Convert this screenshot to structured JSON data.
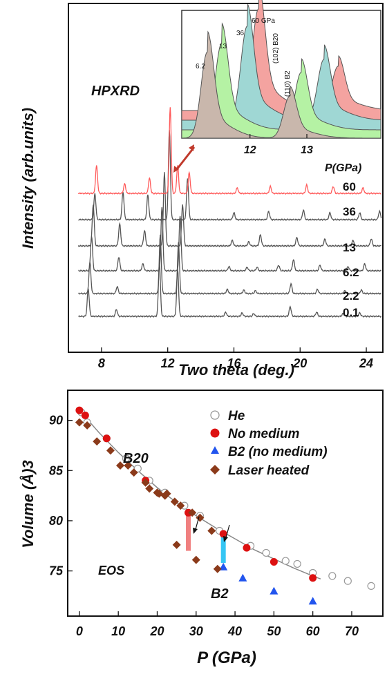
{
  "chart_data": [
    {
      "type": "line",
      "panel": "top",
      "ylabel": "Intensity (arb.units)",
      "xlabel": "Two theta (deg.)",
      "xlim": [
        6,
        25
      ],
      "x_ticks": [
        "8",
        "12",
        "16",
        "20",
        "24"
      ],
      "annotation": "HPXRD",
      "pressure_header": "P(GPa)",
      "series": [
        {
          "name": "0.1",
          "color": "#555555",
          "peaks": [
            [
              7.2,
              40
            ],
            [
              8.9,
              10
            ],
            [
              11.5,
              78
            ],
            [
              12.6,
              68
            ],
            [
              15.5,
              6
            ],
            [
              16.5,
              5
            ],
            [
              17.2,
              4
            ],
            [
              19.4,
              14
            ],
            [
              21.0,
              6
            ],
            [
              22.6,
              4
            ],
            [
              23.6,
              5
            ]
          ]
        },
        {
          "name": "2.2",
          "color": "#555555",
          "peaks": [
            [
              7.3,
              45
            ],
            [
              8.95,
              10
            ],
            [
              11.55,
              85
            ],
            [
              12.65,
              75
            ],
            [
              15.6,
              6
            ],
            [
              16.6,
              5
            ],
            [
              17.3,
              4
            ],
            [
              19.45,
              14
            ],
            [
              21.05,
              6
            ],
            [
              22.7,
              4
            ],
            [
              23.7,
              5
            ]
          ]
        },
        {
          "name": "6.2",
          "color": "#555555",
          "peaks": [
            [
              7.4,
              50
            ],
            [
              9.05,
              20
            ],
            [
              10.5,
              10
            ],
            [
              11.65,
              92
            ],
            [
              12.75,
              80
            ],
            [
              15.7,
              6
            ],
            [
              16.8,
              5
            ],
            [
              17.4,
              5
            ],
            [
              18.7,
              8
            ],
            [
              19.6,
              16
            ],
            [
              21.2,
              8
            ],
            [
              22.9,
              6
            ],
            [
              23.9,
              10
            ]
          ]
        },
        {
          "name": "13",
          "color": "#555555",
          "peaks": [
            [
              7.5,
              60
            ],
            [
              9.1,
              32
            ],
            [
              10.6,
              22
            ],
            [
              11.8,
              106
            ],
            [
              12.9,
              60
            ],
            [
              15.9,
              8
            ],
            [
              16.9,
              6
            ],
            [
              17.6,
              16
            ],
            [
              19.8,
              12
            ],
            [
              21.5,
              10
            ],
            [
              23.2,
              8
            ],
            [
              24.3,
              10
            ]
          ]
        },
        {
          "name": "36",
          "color": "#555555",
          "peaks": [
            [
              7.6,
              38
            ],
            [
              9.3,
              40
            ],
            [
              10.8,
              36
            ],
            [
              12.1,
              130
            ],
            [
              13.2,
              60
            ],
            [
              16.0,
              10
            ],
            [
              18.1,
              12
            ],
            [
              20.2,
              14
            ],
            [
              21.8,
              10
            ],
            [
              23.6,
              10
            ],
            [
              24.8,
              12
            ]
          ]
        },
        {
          "name": "60",
          "color": "#ff5a5a",
          "peaks": [
            [
              7.7,
              40
            ],
            [
              9.4,
              14
            ],
            [
              10.9,
              22
            ],
            [
              12.15,
              125
            ],
            [
              12.6,
              40
            ],
            [
              13.3,
              30
            ],
            [
              16.2,
              8
            ],
            [
              18.2,
              10
            ],
            [
              20.4,
              12
            ],
            [
              22.0,
              10
            ],
            [
              23.8,
              8
            ]
          ]
        }
      ]
    },
    {
      "type": "area",
      "panel": "inset",
      "x_ticks": [
        "12",
        "13"
      ],
      "pressure_labels": [
        "6.2",
        "13",
        "36",
        "60 GPa"
      ],
      "peak_labels": [
        "(102) B20",
        "(110) B2"
      ],
      "series": [
        {
          "name": "6.2",
          "color": "#c9b7ac",
          "peaks": [
            [
              11.25,
              0.78
            ],
            [
              12.7,
              0.38
            ]
          ]
        },
        {
          "name": "13",
          "color": "#b5f2a4",
          "peaks": [
            [
              11.5,
              0.78
            ],
            [
              12.9,
              0.52
            ]
          ]
        },
        {
          "name": "36",
          "color": "#9fd7d4",
          "peaks": [
            [
              11.95,
              0.85
            ],
            [
              13.3,
              0.55
            ]
          ]
        },
        {
          "name": "60",
          "color": "#f4a3a0",
          "peaks": [
            [
              12.15,
              0.92
            ],
            [
              13.55,
              0.4
            ]
          ]
        }
      ]
    },
    {
      "type": "scatter",
      "panel": "bottom",
      "xlabel": "P (GPa)",
      "ylabel": "Volume (Å)3",
      "xlim": [
        -3,
        78
      ],
      "ylim": [
        70.5,
        93
      ],
      "x_ticks": [
        "0",
        "10",
        "20",
        "30",
        "40",
        "50",
        "60",
        "70"
      ],
      "y_ticks": [
        "75",
        "80",
        "85",
        "90"
      ],
      "annotations": [
        "B20",
        "EOS",
        "B2"
      ],
      "series": [
        {
          "name": "He",
          "marker": "open-circle",
          "color": "#999999",
          "x": [
            0.5,
            2,
            7,
            12,
            15,
            18,
            22,
            27,
            31,
            36,
            44,
            48,
            53,
            56,
            60,
            65,
            69,
            75
          ],
          "y": [
            90.8,
            89.8,
            88.2,
            86.2,
            85.2,
            84.0,
            82.8,
            81.5,
            80.5,
            79.0,
            77.5,
            76.8,
            76.0,
            75.7,
            74.8,
            74.5,
            74.0,
            73.5
          ]
        },
        {
          "name": "No medium",
          "marker": "filled-circle",
          "color": "#dd1111",
          "x": [
            0,
            1.5,
            7,
            17,
            28,
            37,
            43,
            50,
            60
          ],
          "y": [
            91.0,
            90.5,
            88.2,
            84.0,
            80.8,
            78.7,
            77.3,
            75.9,
            74.3
          ]
        },
        {
          "name": "B2 (no medium)",
          "marker": "triangle",
          "color": "#2255ee",
          "x": [
            37,
            42,
            50,
            60
          ],
          "y": [
            75.4,
            74.3,
            73.0,
            72.0
          ]
        },
        {
          "name": "Laser heated",
          "marker": "diamond",
          "color": "#8b3a1a",
          "x": [
            0,
            2,
            4.5,
            8,
            10.5,
            12.5,
            14,
            17,
            18,
            20.5,
            22.5,
            24.5,
            26,
            29,
            31,
            34,
            35.5,
            20,
            22,
            25,
            30
          ],
          "y": [
            89.8,
            89.5,
            87.9,
            87.0,
            85.5,
            85.5,
            84.8,
            83.8,
            83.2,
            82.7,
            82.7,
            81.9,
            81.5,
            80.8,
            80.3,
            79.0,
            75.2,
            82.8,
            82.5,
            77.6,
            76.1
          ]
        }
      ],
      "transition_bars": [
        {
          "x": 28,
          "y_low": 77.0,
          "y_high": 80.8,
          "color": "#f08080"
        },
        {
          "x": 37,
          "y_low": 75.8,
          "y_high": 78.7,
          "color": "#35c6f4"
        }
      ],
      "fit_curve": {
        "x": [
          0,
          5,
          10,
          15,
          20,
          25,
          30,
          35,
          40,
          45,
          50,
          55,
          60,
          62
        ],
        "y": [
          91.0,
          88.8,
          86.8,
          85.0,
          83.3,
          81.8,
          80.5,
          79.3,
          78.2,
          77.1,
          76.2,
          75.3,
          74.5,
          74.2
        ]
      }
    }
  ]
}
